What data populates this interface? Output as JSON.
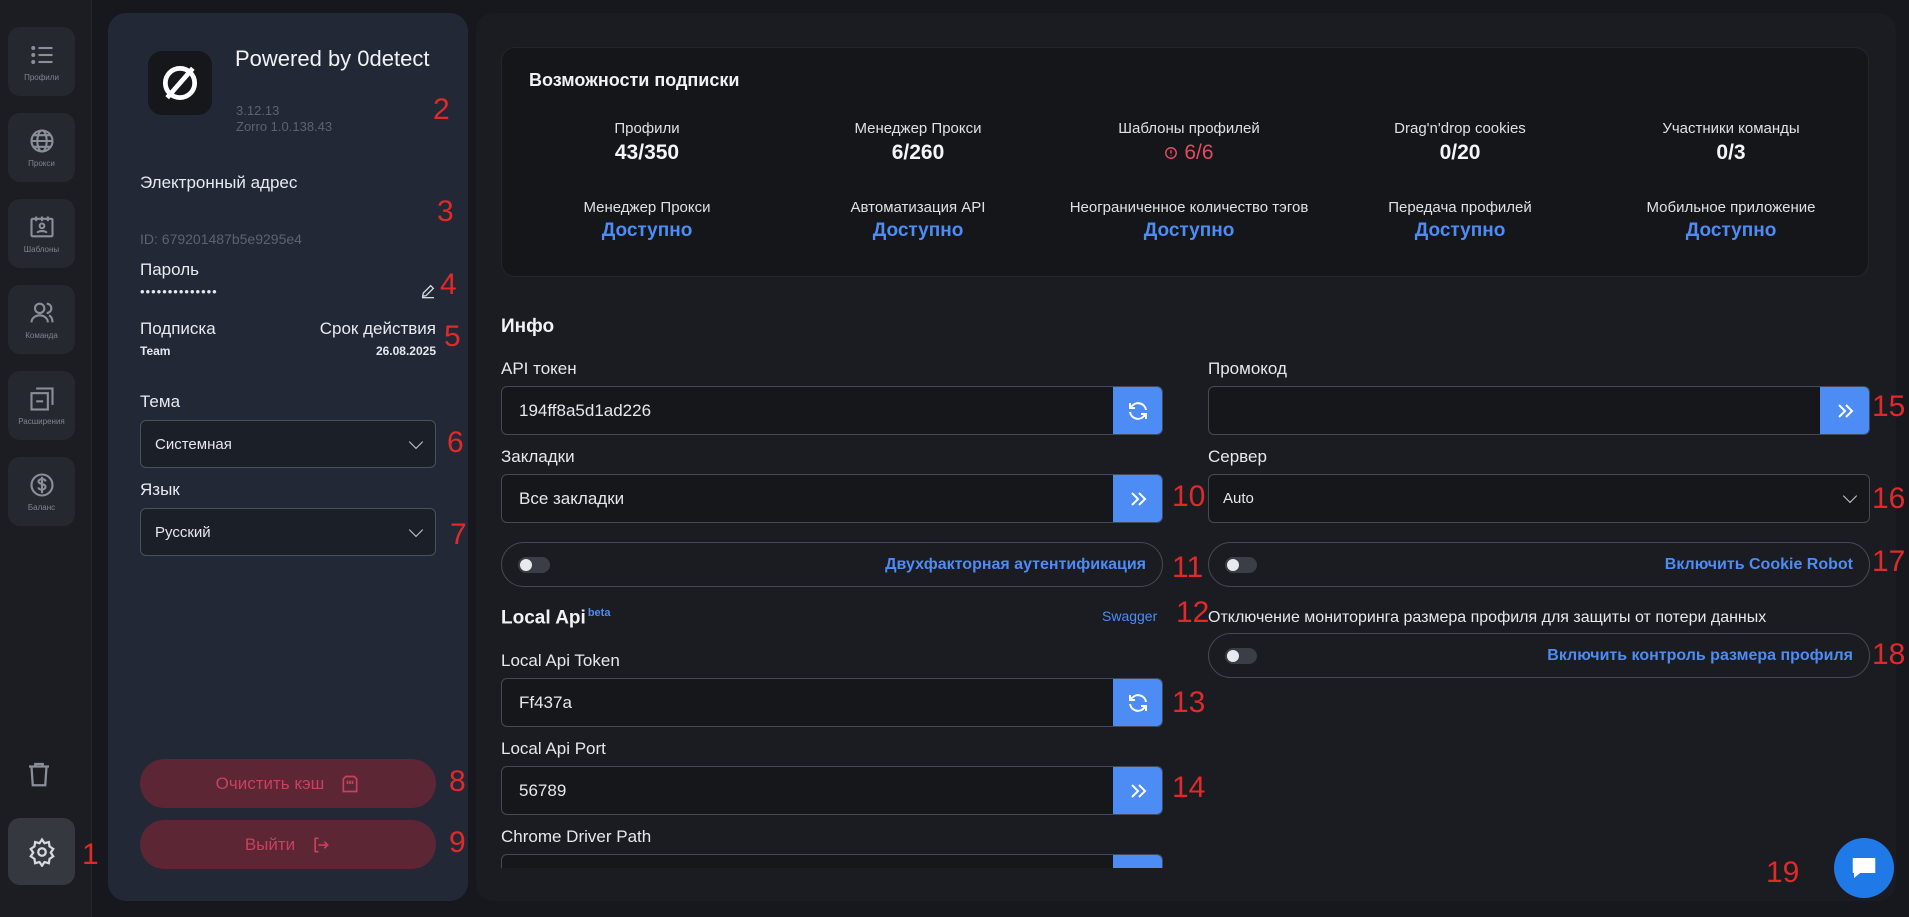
{
  "rail": {
    "items": [
      {
        "label": "Профили",
        "icon": "list-icon"
      },
      {
        "label": "Прокси",
        "icon": "globe-icon"
      },
      {
        "label": "Шаблоны",
        "icon": "template-icon"
      },
      {
        "label": "Команда",
        "icon": "team-icon"
      },
      {
        "label": "Расширения",
        "icon": "extensions-icon"
      },
      {
        "label": "Баланс",
        "icon": "dollar-icon"
      }
    ]
  },
  "profile": {
    "brand": "Powered by 0detect",
    "version": "3.12.13",
    "zorro_version": "Zorro 1.0.138.43",
    "email_label": "Электронный адрес",
    "id_text": "ID: 679201487b5e9295e4",
    "password_label": "Пароль",
    "password_value": "••••••••••••••",
    "subscription_label": "Подписка",
    "subscription_value": "Team",
    "expiry_label": "Срок действия",
    "expiry_value": "26.08.2025",
    "theme_label": "Тема",
    "theme_value": "Системная",
    "language_label": "Язык",
    "language_value": "Русский",
    "clear_cache_label": "Очистить кэш",
    "logout_label": "Выйти"
  },
  "caps": {
    "title": "Возможности подписки",
    "row1": [
      {
        "label": "Профили",
        "value": "43/350"
      },
      {
        "label": "Менеджер Прокси",
        "value": "6/260"
      },
      {
        "label": "Шаблоны профилей",
        "value": "6/6"
      },
      {
        "label": "Drag'n'drop cookies",
        "value": "0/20"
      },
      {
        "label": "Участники команды",
        "value": "0/3"
      }
    ],
    "row2": [
      {
        "label": "Менеджер Прокси",
        "value": "Доступно"
      },
      {
        "label": "Автоматизация API",
        "value": "Доступно"
      },
      {
        "label": "Неограниченное количество тэгов",
        "value": "Доступно"
      },
      {
        "label": "Передача профилей",
        "value": "Доступно"
      },
      {
        "label": "Мобильное приложение",
        "value": "Доступно"
      }
    ]
  },
  "info": {
    "title": "Инфо",
    "api_token_label": "API токен",
    "api_token_value": "194ff8a5d1ad226",
    "bookmarks_label": "Закладки",
    "bookmarks_value": "Все закладки",
    "two_factor_label": "Двухфакторная аутентификация",
    "promo_label": "Промокод",
    "promo_value": "",
    "server_label": "Сервер",
    "server_value": "Auto",
    "cookie_robot_label": "Включить Cookie Robot",
    "size_monitor_title": "Отключение мониторинга размера профиля для защиты от потери данных",
    "size_control_label": "Включить контроль размера профиля"
  },
  "local_api": {
    "title": "Local Api",
    "beta": "beta",
    "swagger": "Swagger",
    "token_label": "Local Api Token",
    "token_value": "Ff437a",
    "port_label": "Local Api Port",
    "port_value": "56789",
    "chrome_label": "Chrome Driver Path"
  },
  "markers": [
    "1",
    "2",
    "3",
    "4",
    "5",
    "6",
    "7",
    "8",
    "9",
    "10",
    "11",
    "12",
    "13",
    "14",
    "15",
    "16",
    "17",
    "18",
    "19"
  ],
  "colors": {
    "accent": "#4d8cf5",
    "danger": "#c8415d",
    "marker": "#e02a2a"
  }
}
